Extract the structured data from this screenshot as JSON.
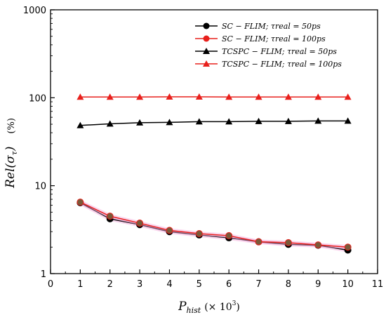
{
  "chart_data": {
    "type": "line",
    "title": "",
    "xlabel": "P_hist (× 10³)",
    "ylabel": "Rel(σ_τ)  (%)",
    "xlim": [
      0,
      11
    ],
    "ylim": [
      1,
      1000
    ],
    "yscale": "log",
    "x_ticks": [
      "0",
      "1",
      "2",
      "3",
      "4",
      "5",
      "6",
      "7",
      "8",
      "9",
      "10",
      "11"
    ],
    "y_ticks": [
      "1",
      "10",
      "100",
      "1000"
    ],
    "x": [
      1,
      2,
      3,
      4,
      5,
      6,
      7,
      8,
      9,
      10
    ],
    "grid": false,
    "legend_position": "top-right",
    "series": [
      {
        "name": "SC − FLIM; τreal = 50ps",
        "marker": "circle",
        "color": "#000000",
        "values": [
          6.4,
          4.2,
          3.6,
          3.0,
          2.75,
          2.55,
          2.3,
          2.15,
          2.1,
          1.85
        ]
      },
      {
        "name": "SC − FLIM; τreal = 100ps",
        "marker": "circle",
        "color": "#e8201c",
        "values": [
          6.5,
          4.5,
          3.75,
          3.1,
          2.85,
          2.7,
          2.3,
          2.25,
          2.12,
          2.0
        ]
      },
      {
        "name": "TCSPC − FLIM; τreal = 50ps",
        "marker": "triangle",
        "color": "#000000",
        "values": [
          48.5,
          50.5,
          52,
          52.5,
          53.5,
          53.5,
          54,
          54,
          54.5,
          54.5
        ]
      },
      {
        "name": "TCSPC − FLIM; τreal = 100ps",
        "marker": "triangle",
        "color": "#e8201c",
        "values": [
          102,
          102,
          102,
          102.5,
          102.5,
          102,
          102,
          102,
          102,
          102
        ]
      }
    ]
  }
}
